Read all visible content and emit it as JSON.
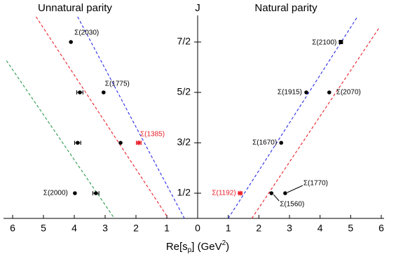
{
  "chart_data": [
    {
      "type": "scatter",
      "title": "Unnatural parity",
      "ylabel": "J",
      "xlabel": [
        "Re[s",
        "p",
        "] (GeV",
        "2",
        ")"
      ],
      "xlim": [
        6,
        0
      ],
      "xticks": [
        6,
        5,
        4,
        3,
        2,
        1,
        0
      ],
      "ylim": [
        0,
        4
      ],
      "yticks": [
        {
          "value": 0.5,
          "label": "1/2"
        },
        {
          "value": 1.5,
          "label": "3/2"
        },
        {
          "value": 2.5,
          "label": "5/2"
        },
        {
          "value": 3.5,
          "label": "7/2"
        }
      ],
      "series": [
        {
          "color": "#000000",
          "marker": "circle",
          "x": [
            4.11,
            3.82,
            3.05,
            3.89,
            2.5,
            3.98,
            3.3
          ],
          "values": [
            3.5,
            2.5,
            2.5,
            1.5,
            1.5,
            0.5,
            0.5
          ],
          "xerr": [
            null,
            0.1,
            null,
            0.1,
            null,
            null,
            0.1
          ],
          "point_labels": [
            "Σ(2030)",
            null,
            "Σ(1775)",
            null,
            null,
            "Σ(2000)",
            null
          ]
        },
        {
          "color": "#e8202a",
          "marker": "star",
          "x": [
            1.91
          ],
          "values": [
            1.5
          ],
          "xerr": [
            0.08
          ],
          "point_labels": [
            "Σ(1385)"
          ]
        }
      ],
      "lines": [
        {
          "color": "#2a2ae8",
          "x": [
            3.89,
            0.43
          ],
          "values": [
            4,
            0
          ]
        },
        {
          "color": "#e8202a",
          "x": [
            5.24,
            0.95
          ],
          "values": [
            4,
            0
          ]
        },
        {
          "color": "#2a9a4a",
          "x": [
            6.2,
            2.7
          ],
          "values": [
            3.13,
            0
          ]
        }
      ]
    },
    {
      "type": "scatter",
      "title": "Natural parity",
      "xlim": [
        0,
        6
      ],
      "xticks": [
        1,
        2,
        3,
        4,
        5,
        6
      ],
      "ylim": [
        0,
        4
      ],
      "series": [
        {
          "color": "#000000",
          "marker": "circle",
          "x": [
            3.55,
            4.3,
            2.73,
            2.41,
            2.86
          ],
          "values": [
            2.5,
            2.5,
            1.5,
            0.5,
            0.5
          ],
          "xerr": [
            null,
            null,
            null,
            null,
            null
          ],
          "point_labels": [
            "Σ(1915)",
            "Σ(2070)",
            "Σ(1670)",
            "Σ(1560)",
            "Σ(1770)"
          ]
        },
        {
          "color": "#000000",
          "marker": "square",
          "x": [
            4.68
          ],
          "values": [
            3.5
          ],
          "xerr": [
            null
          ],
          "point_labels": [
            "Σ(2100)"
          ]
        },
        {
          "color": "#e8202a",
          "marker": "star",
          "x": [
            1.39
          ],
          "values": [
            0.5
          ],
          "xerr": [
            0.06
          ],
          "point_labels": [
            "Σ(1192)"
          ]
        }
      ],
      "lines": [
        {
          "color": "#2a2ae8",
          "x": [
            1.0,
            5.22
          ],
          "values": [
            0,
            4
          ]
        },
        {
          "color": "#e8202a",
          "x": [
            1.77,
            5.95
          ],
          "values": [
            0,
            3.8
          ]
        }
      ]
    }
  ]
}
